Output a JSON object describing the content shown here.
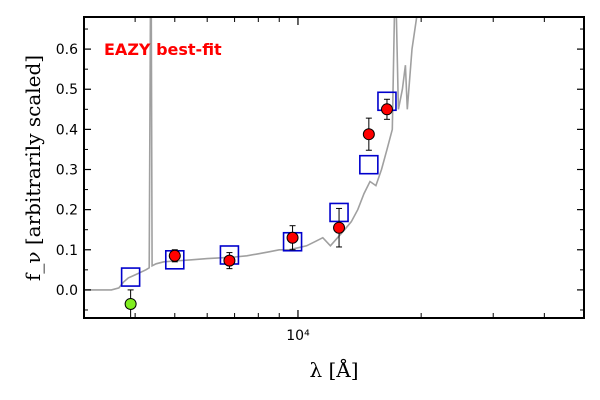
{
  "chart_data": {
    "type": "scatter",
    "xlabel": "λ [Å]",
    "ylabel": "f_ν [arbitrarily scaled]",
    "x_scale": "log",
    "xlim": [
      3000,
      50000
    ],
    "ylim": [
      -0.07,
      0.68
    ],
    "x_ticks": [
      {
        "value": 10000,
        "label": "10⁴"
      }
    ],
    "y_ticks": [
      {
        "value": 0.0,
        "label": "0.0"
      },
      {
        "value": 0.1,
        "label": "0.1"
      },
      {
        "value": 0.2,
        "label": "0.2"
      },
      {
        "value": 0.3,
        "label": "0.3"
      },
      {
        "value": 0.4,
        "label": "0.4"
      },
      {
        "value": 0.5,
        "label": "0.5"
      },
      {
        "value": 0.6,
        "label": "0.6"
      }
    ],
    "annotation": {
      "text": "EAZY best-fit",
      "color": "#ff0000"
    },
    "grid": false,
    "series": [
      {
        "kind": "line",
        "color": "#a0a0a0",
        "points": [
          [
            3000,
            0.0
          ],
          [
            3500,
            0.0
          ],
          [
            3650,
            0.005
          ],
          [
            3750,
            0.02
          ],
          [
            3850,
            0.03
          ],
          [
            3950,
            0.035
          ],
          [
            4050,
            0.04
          ],
          [
            4150,
            0.045
          ],
          [
            4250,
            0.05
          ],
          [
            4330,
            0.055
          ],
          [
            4360,
            0.68
          ],
          [
            4380,
            0.68
          ],
          [
            4400,
            0.06
          ],
          [
            4500,
            0.065
          ],
          [
            4700,
            0.07
          ],
          [
            5000,
            0.072
          ],
          [
            5500,
            0.075
          ],
          [
            6000,
            0.078
          ],
          [
            6500,
            0.08
          ],
          [
            7000,
            0.082
          ],
          [
            7500,
            0.085
          ],
          [
            8000,
            0.09
          ],
          [
            8500,
            0.095
          ],
          [
            9000,
            0.1
          ],
          [
            9500,
            0.1
          ],
          [
            10000,
            0.105
          ],
          [
            10500,
            0.11
          ],
          [
            11000,
            0.12
          ],
          [
            11500,
            0.13
          ],
          [
            12000,
            0.11
          ],
          [
            12500,
            0.13
          ],
          [
            13000,
            0.15
          ],
          [
            13500,
            0.17
          ],
          [
            14000,
            0.2
          ],
          [
            14500,
            0.24
          ],
          [
            15000,
            0.27
          ],
          [
            15500,
            0.26
          ],
          [
            16000,
            0.3
          ],
          [
            16500,
            0.35
          ],
          [
            17000,
            0.4
          ],
          [
            17200,
            0.68
          ],
          [
            17400,
            0.68
          ],
          [
            17600,
            0.45
          ],
          [
            18000,
            0.5
          ],
          [
            18300,
            0.56
          ],
          [
            18500,
            0.45
          ],
          [
            19000,
            0.6
          ],
          [
            19500,
            0.68
          ]
        ]
      },
      {
        "kind": "model_boxes",
        "color": "#0000cc",
        "points": [
          [
            3900,
            0.032
          ],
          [
            5000,
            0.075
          ],
          [
            6800,
            0.087
          ],
          [
            9700,
            0.12
          ],
          [
            12600,
            0.193
          ],
          [
            14900,
            0.312
          ],
          [
            16500,
            0.47
          ]
        ]
      },
      {
        "kind": "observed",
        "color": "#ff0000",
        "points": [
          {
            "x": 5000,
            "y": 0.085,
            "err": 0.015
          },
          {
            "x": 6800,
            "y": 0.073,
            "err": 0.02
          },
          {
            "x": 9700,
            "y": 0.13,
            "err": 0.03
          },
          {
            "x": 12600,
            "y": 0.155,
            "err": 0.048
          },
          {
            "x": 14900,
            "y": 0.388,
            "err": 0.04
          },
          {
            "x": 16500,
            "y": 0.45,
            "err": 0.025
          }
        ]
      },
      {
        "kind": "upper_limit",
        "color": "#80ee20",
        "points": [
          {
            "x": 3900,
            "y": -0.035,
            "err": 0.035
          }
        ]
      }
    ]
  }
}
